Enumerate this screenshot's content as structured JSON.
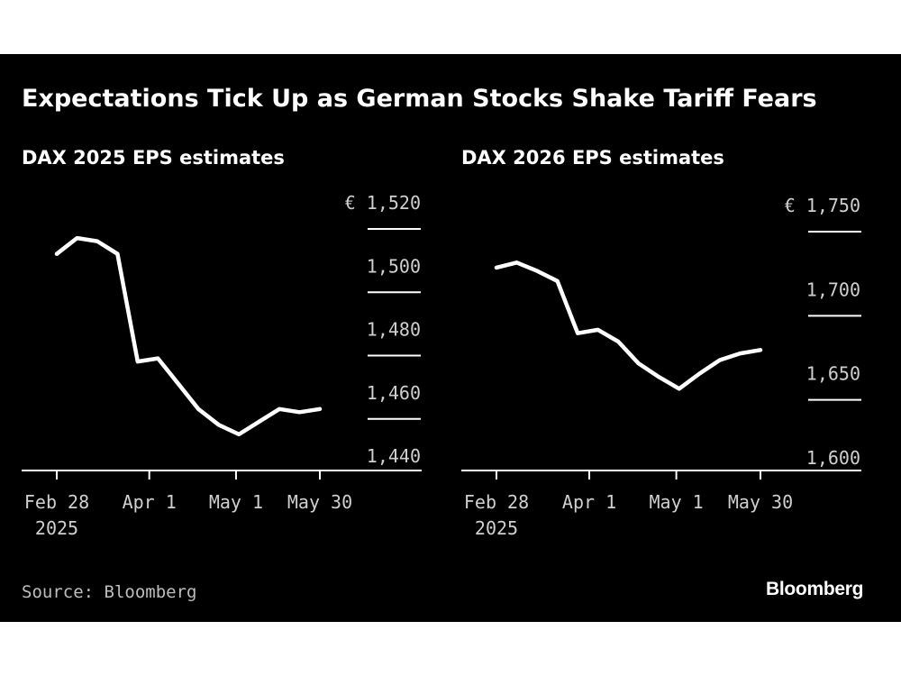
{
  "title": "Expectations Tick Up as German Stocks Shake Tariff Fears",
  "source": "Source: Bloomberg",
  "brand": "Bloomberg",
  "colors": {
    "background": "#000000",
    "line": "#ffffff",
    "axis": "#ffffff",
    "text": "#cfcfcf"
  },
  "chart_data": [
    {
      "type": "line",
      "title": "DAX 2025 EPS estimates",
      "xlabel": "",
      "ylabel": "",
      "y_currency": "€",
      "ylim": [
        1440,
        1520
      ],
      "y_ticks": [
        1520,
        1500,
        1480,
        1460,
        1440
      ],
      "y_tick_labels": [
        "1,520",
        "1,500",
        "1,480",
        "1,460",
        "1,440"
      ],
      "x_ticks": [
        "2025-02-28",
        "2025-04-01",
        "2025-05-01",
        "2025-05-30"
      ],
      "x_tick_labels": [
        [
          "Feb 28",
          "2025"
        ],
        [
          "Apr 1"
        ],
        [
          "May 1"
        ],
        [
          "May 30"
        ]
      ],
      "grid": false,
      "series": [
        {
          "x": [
            "2025-02-28",
            "2025-03-07",
            "2025-03-14",
            "2025-03-21",
            "2025-03-28",
            "2025-04-04",
            "2025-04-11",
            "2025-04-18",
            "2025-04-25",
            "2025-05-02",
            "2025-05-09",
            "2025-05-16",
            "2025-05-23",
            "2025-05-30"
          ],
          "values": [
            1507,
            1512,
            1511,
            1507,
            1473,
            1474,
            1466,
            1458,
            1453,
            1450,
            1454,
            1458,
            1457,
            1458
          ]
        }
      ]
    },
    {
      "type": "line",
      "title": "DAX 2026 EPS estimates",
      "xlabel": "",
      "ylabel": "",
      "y_currency": "€",
      "ylim": [
        1600,
        1750
      ],
      "y_ticks": [
        1750,
        1700,
        1650,
        1600
      ],
      "y_tick_labels": [
        "1,750",
        "1,700",
        "1,650",
        "1,600"
      ],
      "x_ticks": [
        "2025-02-28",
        "2025-04-01",
        "2025-05-01",
        "2025-05-30"
      ],
      "x_tick_labels": [
        [
          "Feb 28",
          "2025"
        ],
        [
          "Apr 1"
        ],
        [
          "May 1"
        ],
        [
          "May 30"
        ]
      ],
      "grid": false,
      "series": [
        {
          "x": [
            "2025-02-28",
            "2025-03-07",
            "2025-03-14",
            "2025-03-21",
            "2025-03-28",
            "2025-04-04",
            "2025-04-11",
            "2025-04-18",
            "2025-04-25",
            "2025-05-02",
            "2025-05-09",
            "2025-05-16",
            "2025-05-23",
            "2025-05-30"
          ],
          "values": [
            1719,
            1722,
            1717,
            1711,
            1680,
            1682,
            1675,
            1662,
            1654,
            1647,
            1656,
            1664,
            1668,
            1670
          ]
        }
      ]
    }
  ]
}
